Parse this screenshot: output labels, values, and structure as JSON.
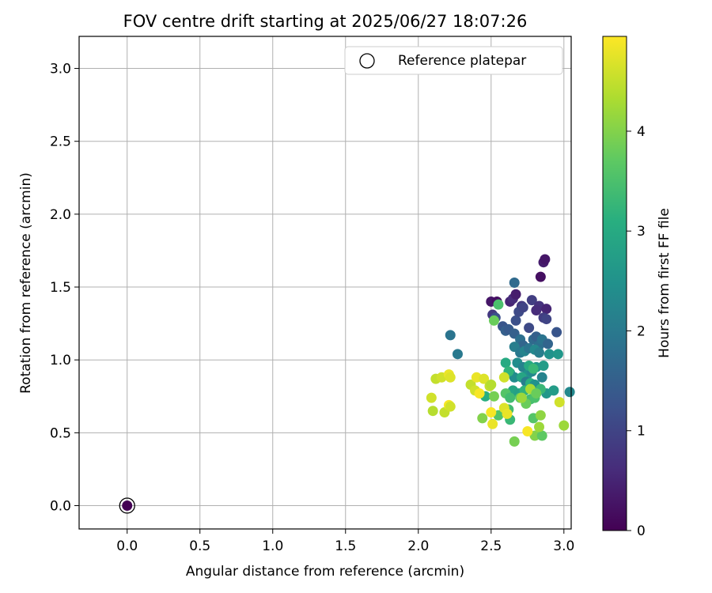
{
  "chart_data": {
    "type": "scatter",
    "title": "FOV centre drift starting at 2025/06/27 18:07:26",
    "xlabel": "Angular distance from reference (arcmin)",
    "ylabel": "Rotation from reference (arcmin)",
    "xlim": [
      -0.33,
      3.05
    ],
    "ylim": [
      -0.16,
      3.22
    ],
    "xticks": [
      "0.0",
      "0.5",
      "1.0",
      "1.5",
      "2.0",
      "2.5",
      "3.0"
    ],
    "yticks": [
      "0.0",
      "0.5",
      "1.0",
      "1.5",
      "2.0",
      "2.5",
      "3.0"
    ],
    "grid": true,
    "legend": {
      "position": "top-right",
      "entries": [
        "Reference platepar"
      ]
    },
    "reference_point": {
      "x": 0.0,
      "y": 0.0,
      "color_value": 0.0
    },
    "colorbar": {
      "label": "Hours from first FF file",
      "colormap": "viridis",
      "range": [
        0,
        4.95
      ],
      "ticks": [
        "0",
        "1",
        "2",
        "3",
        "4"
      ]
    },
    "points": [
      [
        2.5,
        1.4,
        0.3
      ],
      [
        2.54,
        1.4,
        0.2
      ],
      [
        2.63,
        1.4,
        0.5
      ],
      [
        2.65,
        1.42,
        0.6
      ],
      [
        2.67,
        1.45,
        0.4
      ],
      [
        2.71,
        1.37,
        0.8
      ],
      [
        2.67,
        1.27,
        1.2
      ],
      [
        2.69,
        1.33,
        1.1
      ],
      [
        2.72,
        1.36,
        1.0
      ],
      [
        2.78,
        1.41,
        0.9
      ],
      [
        2.83,
        1.37,
        0.7
      ],
      [
        2.81,
        1.34,
        0.6
      ],
      [
        2.86,
        1.67,
        0.4
      ],
      [
        2.87,
        1.69,
        0.3
      ],
      [
        2.84,
        1.57,
        0.2
      ],
      [
        2.88,
        1.35,
        0.5
      ],
      [
        2.86,
        1.29,
        0.9
      ],
      [
        2.88,
        1.28,
        1.0
      ],
      [
        2.95,
        1.19,
        1.3
      ],
      [
        2.66,
        1.53,
        1.7
      ],
      [
        2.51,
        1.31,
        0.8
      ],
      [
        2.53,
        1.29,
        1.2
      ],
      [
        2.58,
        1.23,
        1.3
      ],
      [
        2.6,
        1.2,
        1.5
      ],
      [
        2.62,
        1.21,
        1.4
      ],
      [
        2.66,
        1.18,
        1.5
      ],
      [
        2.7,
        1.14,
        1.8
      ],
      [
        2.72,
        1.1,
        1.6
      ],
      [
        2.76,
        1.22,
        1.1
      ],
      [
        2.79,
        1.14,
        1.7
      ],
      [
        2.81,
        1.16,
        1.5
      ],
      [
        2.83,
        1.1,
        1.8
      ],
      [
        2.85,
        1.14,
        1.9
      ],
      [
        2.89,
        1.11,
        1.6
      ],
      [
        2.22,
        1.17,
        1.9
      ],
      [
        2.27,
        1.04,
        2.0
      ],
      [
        2.66,
        1.09,
        2.1
      ],
      [
        2.7,
        1.05,
        2.0
      ],
      [
        2.73,
        1.06,
        2.2
      ],
      [
        2.76,
        1.08,
        1.9
      ],
      [
        2.8,
        1.07,
        2.3
      ],
      [
        2.83,
        1.05,
        2.1
      ],
      [
        2.9,
        1.04,
        2.5
      ],
      [
        2.96,
        1.04,
        2.6
      ],
      [
        2.68,
        0.98,
        2.4
      ],
      [
        2.72,
        0.95,
        2.2
      ],
      [
        2.75,
        0.9,
        2.5
      ],
      [
        2.78,
        0.92,
        2.3
      ],
      [
        2.81,
        0.95,
        2.6
      ],
      [
        2.86,
        0.96,
        2.7
      ],
      [
        2.85,
        0.88,
        2.2
      ],
      [
        2.63,
        0.91,
        2.8
      ],
      [
        2.66,
        0.88,
        2.4
      ],
      [
        2.71,
        0.88,
        2.9
      ],
      [
        2.74,
        0.85,
        2.1
      ],
      [
        2.77,
        0.84,
        3.1
      ],
      [
        2.8,
        0.83,
        2.5
      ],
      [
        2.83,
        0.8,
        2.4
      ],
      [
        2.88,
        0.77,
        2.6
      ],
      [
        2.93,
        0.79,
        2.7
      ],
      [
        3.04,
        0.78,
        2.3
      ],
      [
        2.6,
        0.98,
        3.0
      ],
      [
        2.62,
        0.92,
        3.2
      ],
      [
        2.76,
        0.96,
        3.0
      ],
      [
        2.79,
        0.94,
        3.3
      ],
      [
        2.46,
        0.75,
        3.1
      ],
      [
        2.65,
        0.79,
        2.9
      ],
      [
        2.69,
        0.77,
        2.8
      ],
      [
        2.73,
        0.79,
        3.2
      ],
      [
        2.77,
        0.73,
        3.4
      ],
      [
        2.8,
        0.74,
        3.5
      ],
      [
        2.84,
        0.8,
        3.3
      ],
      [
        2.7,
        0.74,
        3.7
      ],
      [
        2.74,
        0.7,
        3.8
      ],
      [
        2.79,
        0.6,
        3.6
      ],
      [
        2.52,
        0.75,
        3.9
      ],
      [
        2.6,
        0.77,
        3.6
      ],
      [
        2.63,
        0.74,
        3.4
      ],
      [
        2.55,
        1.38,
        3.5
      ],
      [
        2.52,
        1.27,
        3.8
      ],
      [
        2.55,
        0.62,
        3.6
      ],
      [
        2.62,
        0.66,
        3.4
      ],
      [
        2.63,
        0.59,
        3.3
      ],
      [
        2.77,
        0.8,
        4.3
      ],
      [
        2.81,
        0.77,
        3.8
      ],
      [
        2.44,
        0.6,
        4.0
      ],
      [
        2.66,
        0.44,
        3.9
      ],
      [
        2.8,
        0.48,
        4.0
      ],
      [
        2.85,
        0.48,
        3.7
      ],
      [
        2.83,
        0.54,
        4.2
      ],
      [
        2.84,
        0.62,
        4.1
      ],
      [
        2.71,
        0.74,
        4.2
      ],
      [
        2.12,
        0.87,
        4.5
      ],
      [
        2.16,
        0.88,
        4.6
      ],
      [
        2.1,
        0.65,
        4.4
      ],
      [
        2.09,
        0.74,
        4.6
      ],
      [
        2.18,
        0.64,
        4.5
      ],
      [
        2.21,
        0.69,
        4.9
      ],
      [
        2.22,
        0.68,
        4.6
      ],
      [
        2.21,
        0.9,
        4.8
      ],
      [
        2.22,
        0.88,
        4.7
      ],
      [
        2.36,
        0.83,
        4.5
      ],
      [
        2.39,
        0.79,
        4.6
      ],
      [
        2.4,
        0.88,
        4.8
      ],
      [
        2.42,
        0.77,
        4.9
      ],
      [
        2.45,
        0.87,
        4.7
      ],
      [
        2.49,
        0.82,
        4.5
      ],
      [
        2.5,
        0.83,
        4.4
      ],
      [
        2.5,
        0.64,
        4.9
      ],
      [
        2.51,
        0.56,
        4.8
      ],
      [
        2.59,
        0.88,
        4.6
      ],
      [
        2.59,
        0.67,
        4.7
      ],
      [
        2.61,
        0.63,
        4.8
      ],
      [
        2.75,
        0.51,
        4.9
      ],
      [
        2.97,
        0.71,
        4.6
      ],
      [
        3.0,
        0.55,
        4.2
      ]
    ]
  }
}
